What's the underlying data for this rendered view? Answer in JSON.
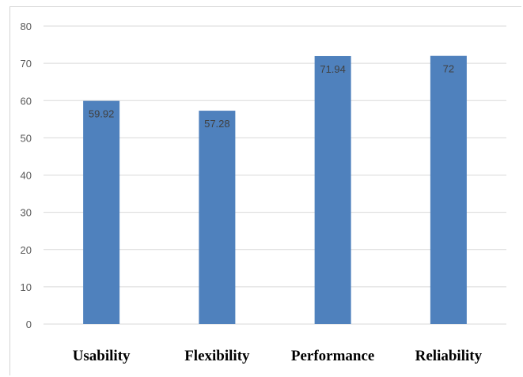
{
  "chart_data": {
    "type": "bar",
    "categories": [
      "Usability",
      "Flexibility",
      "Performance",
      "Reliability"
    ],
    "values": [
      59.92,
      57.28,
      71.94,
      72
    ],
    "data_labels": [
      "59.92",
      "57.28",
      "71.94",
      "72"
    ],
    "ylim": [
      0,
      80
    ],
    "yticks": [
      0,
      10,
      20,
      30,
      40,
      50,
      60,
      70,
      80
    ],
    "ytick_labels": [
      "0",
      "10",
      "20",
      "30",
      "40",
      "50",
      "60",
      "70",
      "80"
    ],
    "grid": true,
    "bar_color": "#4f81bd"
  }
}
